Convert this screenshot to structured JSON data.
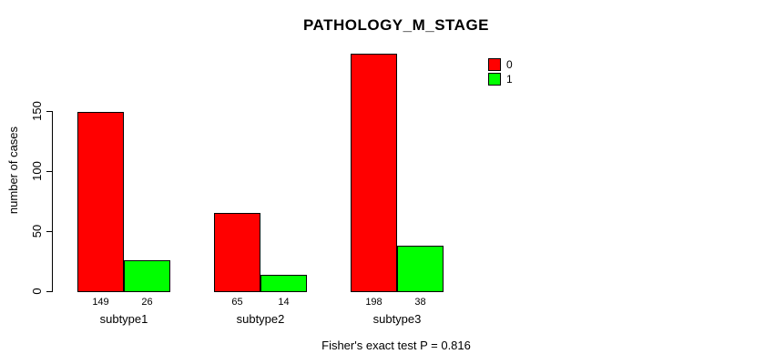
{
  "chart_data": {
    "type": "bar",
    "title": "PATHOLOGY_M_STAGE",
    "xlabel": "",
    "ylabel": "number of cases",
    "categories": [
      "subtype1",
      "subtype2",
      "subtype3"
    ],
    "series": [
      {
        "name": "0",
        "color": "#FF0000",
        "values": [
          149,
          65,
          198
        ]
      },
      {
        "name": "1",
        "color": "#00FF00",
        "values": [
          26,
          14,
          38
        ]
      }
    ],
    "yticks": [
      0,
      50,
      100,
      150
    ],
    "ylim": [
      0,
      210
    ],
    "grid": false,
    "legend_position": "top-right",
    "value_labels_shown": true,
    "annotation": "Fisher's exact test P = 0.816"
  }
}
